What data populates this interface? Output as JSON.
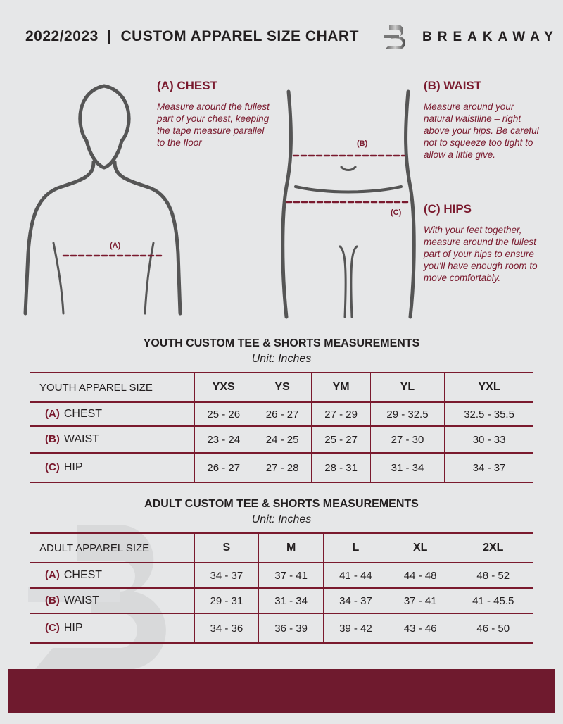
{
  "header": {
    "title": "2022/2023  |  CUSTOM APPAREL SIZE CHART",
    "brand": "BREAKAWAY",
    "logo_letter": "B"
  },
  "measures": {
    "chest": {
      "heading": "(A) CHEST",
      "text": "Measure around the fullest part of your chest, keeping the tape measure parallel to the floor",
      "marker": "(A)"
    },
    "waist": {
      "heading": "(B) WAIST",
      "text": "Measure around your natural waistline – right above your hips. Be careful not to squeeze too tight to allow a little give.",
      "marker": "(B)"
    },
    "hips": {
      "heading": "(C) HIPS",
      "text": "With your feet together, measure around the fullest part of your hips to ensure you'll have enough room to move comfortably.",
      "marker": "(C)"
    }
  },
  "youth": {
    "title": "YOUTH CUSTOM TEE & SHORTS MEASUREMENTS",
    "unit": "Unit: Inches",
    "header": "YOUTH APPAREL SIZE",
    "sizes": [
      "YXS",
      "YS",
      "YM",
      "YL",
      "YXL"
    ],
    "rows": [
      {
        "letter": "(A)",
        "label": "CHEST",
        "values": [
          "25 - 26",
          "26 - 27",
          "27 - 29",
          "29 - 32.5",
          "32.5 - 35.5"
        ]
      },
      {
        "letter": "(B)",
        "label": "WAIST",
        "values": [
          "23 - 24",
          "24 - 25",
          "25 - 27",
          "27 - 30",
          "30 - 33"
        ]
      },
      {
        "letter": "(C)",
        "label": "HIP",
        "values": [
          "26 - 27",
          "27 - 28",
          "28 - 31",
          "31 - 34",
          "34 - 37"
        ]
      }
    ]
  },
  "adult": {
    "title": "ADULT CUSTOM TEE & SHORTS MEASUREMENTS",
    "unit": "Unit: Inches",
    "header": "ADULT APPAREL SIZE",
    "sizes": [
      "S",
      "M",
      "L",
      "XL",
      "2XL"
    ],
    "rows": [
      {
        "letter": "(A)",
        "label": "CHEST",
        "values": [
          "34 - 37",
          "37 - 41",
          "41 - 44",
          "44 - 48",
          "48 - 52"
        ]
      },
      {
        "letter": "(B)",
        "label": "WAIST",
        "values": [
          "29 - 31",
          "31 - 34",
          "34 - 37",
          "37 - 41",
          "41 - 45.5"
        ]
      },
      {
        "letter": "(C)",
        "label": "HIP",
        "values": [
          "34 - 36",
          "36 - 39",
          "39 - 42",
          "43 - 46",
          "46 - 50"
        ]
      }
    ]
  },
  "colors": {
    "accent": "#7a1a2e",
    "background": "#e6e7e8",
    "footer": "#6f1a2e"
  }
}
